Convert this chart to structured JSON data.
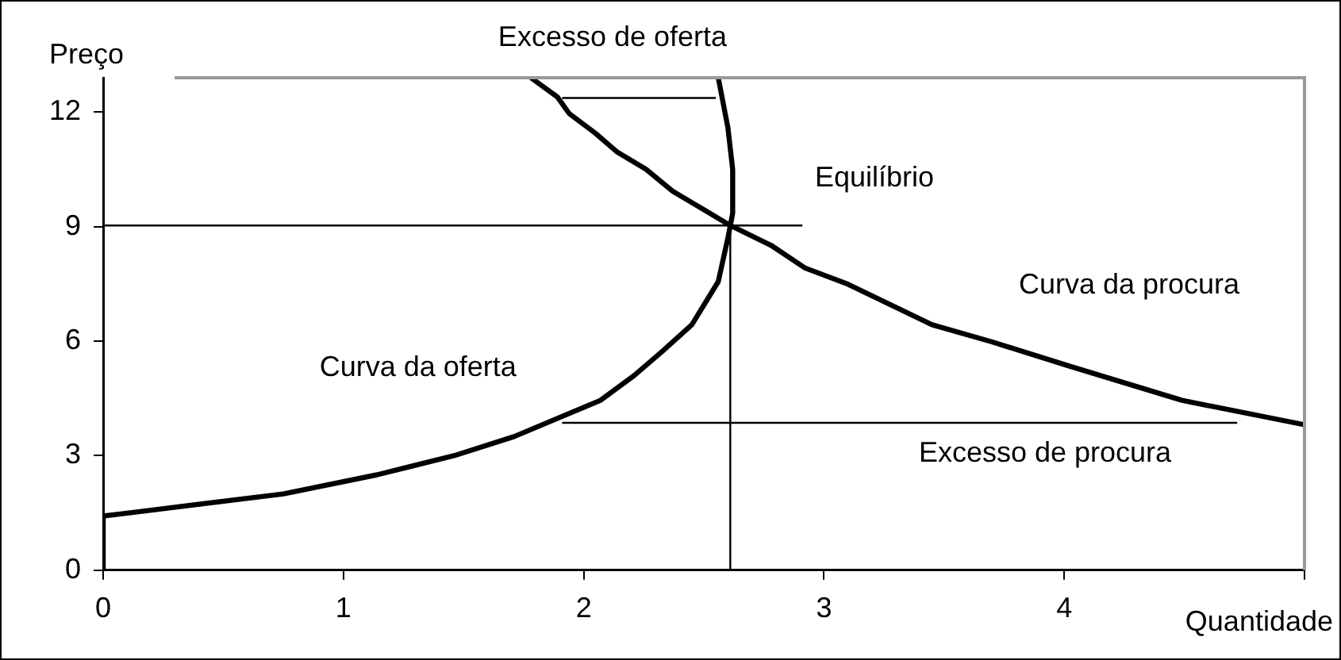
{
  "chart_data": {
    "type": "line",
    "xlabel": "Quantidade",
    "ylabel": "Preço",
    "xlim": [
      0,
      5
    ],
    "xticks": [
      0,
      1,
      2,
      3,
      4,
      {
        "value": 5,
        "label": null
      }
    ],
    "ylim": [
      0,
      12.9
    ],
    "yticks": [
      0,
      3,
      6,
      9,
      12
    ],
    "grid": false,
    "legend": false,
    "marker": "none",
    "line_style": "solid",
    "series": [
      {
        "color": "#000000",
        "x": [
          0,
          0,
          0.107,
          0.75,
          1.14,
          1.46,
          1.71,
          2.07,
          2.21,
          2.33,
          2.45,
          2.56,
          2.6,
          2.62,
          2.62,
          2.6,
          2.56
        ],
        "values": [
          0,
          1.42,
          1.5,
          2.0,
          2.5,
          3.0,
          3.5,
          4.45,
          5.1,
          5.75,
          6.43,
          7.56,
          8.7,
          9.35,
          10.5,
          11.6,
          12.9
        ]
      },
      {
        "color": "#000000",
        "x": [
          1.78,
          1.89,
          1.94,
          2.05,
          2.14,
          2.26,
          2.37,
          2.49,
          2.61,
          2.78,
          2.92,
          3.1,
          3.45,
          3.7,
          4.02,
          4.49,
          5.0
        ],
        "values": [
          12.9,
          12.4,
          11.96,
          11.44,
          10.95,
          10.5,
          9.93,
          9.48,
          9.03,
          8.51,
          7.92,
          7.49,
          6.43,
          5.98,
          5.35,
          4.45,
          3.81
        ]
      },
      {
        "color": "#000000",
        "x": [
          1.91,
          2.55
        ],
        "values": [
          12.37,
          12.37
        ]
      },
      {
        "color": "#000000",
        "x": [
          0,
          2.91
        ],
        "values": [
          9.03,
          9.03
        ]
      },
      {
        "color": "#000000",
        "x": [
          2.61,
          2.61
        ],
        "values": [
          0,
          9.03
        ]
      },
      {
        "color": "#000000",
        "x": [
          1.91,
          4.72
        ],
        "values": [
          3.86,
          3.86
        ]
      }
    ],
    "annotations": [
      "Excesso de oferta",
      "Equilíbrio",
      "Curva da procura",
      "Curva da oferta",
      "Excesso de procura"
    ]
  }
}
